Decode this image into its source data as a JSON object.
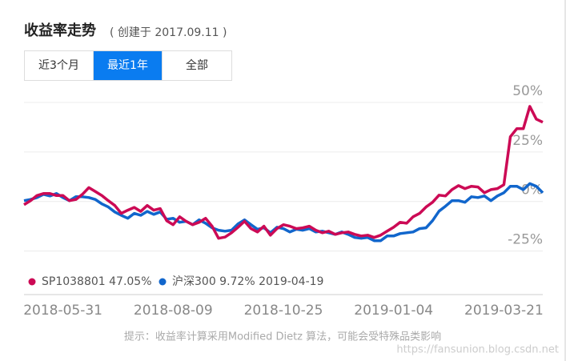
{
  "header": {
    "title": "收益率走势",
    "subtitle": "( 创建于 2017.09.11 )"
  },
  "tabs": [
    "近3个月",
    "最近1年",
    "全部"
  ],
  "active_tab": 1,
  "chart_data": {
    "type": "line",
    "categories": [
      null,
      null,
      null,
      null,
      null,
      null,
      "2018-05-31",
      null,
      null,
      null,
      null,
      null,
      null,
      null,
      null,
      null,
      null,
      null,
      null,
      null,
      null,
      null,
      null,
      "2018-08-09",
      null,
      null,
      null,
      null,
      null,
      null,
      null,
      null,
      null,
      null,
      null,
      null,
      null,
      null,
      null,
      null,
      "2018-10-25",
      null,
      null,
      null,
      null,
      null,
      null,
      null,
      null,
      null,
      null,
      null,
      null,
      null,
      null,
      null,
      null,
      "2019-01-04",
      null,
      null,
      null,
      null,
      null,
      null,
      null,
      null,
      null,
      null,
      null,
      null,
      null,
      null,
      null,
      null,
      "2019-03-21",
      null,
      null,
      null,
      null,
      null,
      null
    ],
    "series": [
      {
        "name": "沪深300 9.72% 2019-04-19",
        "color": "#1166cc",
        "values": [
          0.4,
          1,
          2,
          3.6,
          2.8,
          4,
          2,
          0.4,
          2.4,
          2.4,
          2,
          1,
          -1.2,
          -2.8,
          -5.3,
          -7,
          -8.5,
          -6,
          -7,
          -5,
          -6.5,
          -5.3,
          -9,
          -8.5,
          -10.5,
          -10,
          -11.7,
          -9.3,
          -11,
          -13.3,
          -14.5,
          -15,
          -14.5,
          -11.3,
          -9.3,
          -11.7,
          -14,
          -13.3,
          -15.8,
          -13,
          -13.7,
          -15.4,
          -14,
          -14.5,
          -13.7,
          -15.4,
          -15,
          -15.8,
          -16.6,
          -15.4,
          -16.6,
          -18.2,
          -18.6,
          -18.2,
          -19.8,
          -19.8,
          -17.4,
          -17.4,
          -16.2,
          -15.8,
          -15.4,
          -13.7,
          -13.3,
          -9.7,
          -4.9,
          -2.4,
          0.4,
          0.4,
          -0.4,
          2.4,
          2,
          2.8,
          0.4,
          2.8,
          4.4,
          7.7,
          7.7,
          6,
          9,
          7.7,
          4.4
        ]
      },
      {
        "name": "SP1038801 47.05%",
        "color": "#cc0a55",
        "values": [
          -1.6,
          0.4,
          3,
          4,
          4,
          3,
          3,
          0.4,
          1,
          3.6,
          7,
          5,
          3,
          0.4,
          -2,
          -6,
          -4.4,
          -3,
          -5,
          -2,
          -4.4,
          -3.6,
          -9.7,
          -11.7,
          -7.7,
          -10,
          -11.7,
          -10.5,
          -8.5,
          -12.5,
          -18.6,
          -18,
          -15.8,
          -13,
          -10,
          -13.7,
          -15.4,
          -12.5,
          -17,
          -13.7,
          -11.7,
          -12.5,
          -13.7,
          -13.3,
          -12.5,
          -14.5,
          -15.8,
          -15,
          -16.6,
          -15.8,
          -15.4,
          -16.6,
          -17.4,
          -17,
          -18.2,
          -17,
          -15,
          -13,
          -10.5,
          -11,
          -7.7,
          -6,
          -2.8,
          -0.4,
          3.2,
          2.8,
          6,
          8,
          6.5,
          7.7,
          7.3,
          4.4,
          6,
          6.5,
          8.5,
          32.7,
          36.8,
          36.8,
          48,
          41.6,
          40
        ]
      }
    ],
    "ylim": [
      -47,
      50
    ],
    "yticks": [
      {
        "value": -25,
        "label": "-25%"
      },
      {
        "value": 0,
        "label": "0%"
      },
      {
        "value": 25,
        "label": "25%"
      },
      {
        "value": 50,
        "label": "50%"
      }
    ],
    "grid": true
  },
  "footnote": "提示：收益率计算采用Modified Dietz 算法，可能会受特殊品类影响",
  "watermark": "https://fansunion.blog.csdn.net"
}
